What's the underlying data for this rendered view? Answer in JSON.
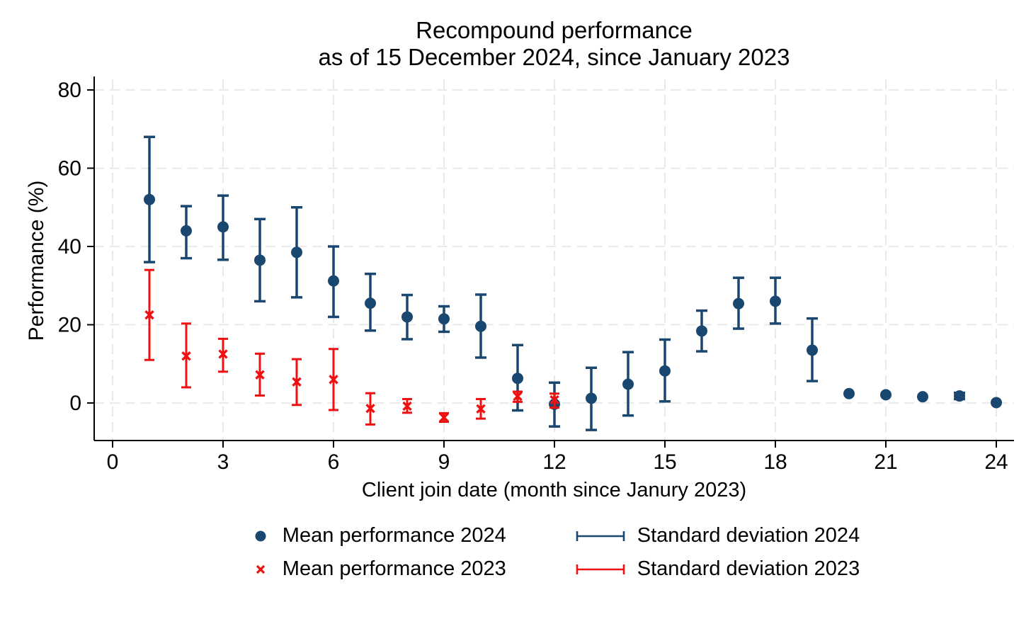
{
  "chart_data": {
    "type": "scatter",
    "title": {
      "line1": "Recompound performance",
      "line2": "as of 15 December 2024, since January 2023"
    },
    "xlabel": "Client join date (month since Janury 2023)",
    "ylabel": "Performance (%)",
    "xlim": [
      0,
      24
    ],
    "x_ticks": [
      0,
      3,
      6,
      9,
      12,
      15,
      18,
      21,
      24
    ],
    "ylim": [
      -9,
      80
    ],
    "y_ticks": [
      0,
      20,
      40,
      60,
      80
    ],
    "grid": "both axes, dashed light gray",
    "legend_position": "bottom",
    "colors": {
      "navy": "#1a476f",
      "red": "#ee1111",
      "grid": "#e3e3e3",
      "axis": "#000000"
    },
    "series": [
      {
        "name": "Mean performance 2024",
        "sd_name": "Standard deviation 2024",
        "color": "#1a476f",
        "marker": "circle",
        "points_format": [
          "month",
          "mean",
          "sd_low",
          "sd_high"
        ],
        "points": [
          [
            1,
            52,
            36,
            68
          ],
          [
            2,
            44,
            37,
            50.3
          ],
          [
            3,
            45,
            36.6,
            53
          ],
          [
            4,
            36.5,
            26,
            47
          ],
          [
            5,
            38.5,
            27,
            50
          ],
          [
            6,
            31.2,
            22,
            40
          ],
          [
            7,
            25.5,
            18.5,
            33
          ],
          [
            8,
            22,
            16.3,
            27.6
          ],
          [
            9,
            21.5,
            18.2,
            24.7
          ],
          [
            10,
            19.6,
            11.6,
            27.7
          ],
          [
            11,
            6.3,
            -1.9,
            14.8
          ],
          [
            12,
            -0.3,
            -6,
            5.2
          ],
          [
            13,
            1.2,
            -6.9,
            9
          ],
          [
            14,
            4.8,
            -3.2,
            13
          ],
          [
            15,
            8.2,
            0.4,
            16.2
          ],
          [
            16,
            18.4,
            13.2,
            23.6
          ],
          [
            17,
            25.4,
            19,
            32
          ],
          [
            18,
            26,
            20.3,
            32
          ],
          [
            19,
            13.5,
            5.6,
            21.6
          ],
          [
            20,
            2.4,
            null,
            null
          ],
          [
            21,
            2.1,
            null,
            null
          ],
          [
            22,
            1.6,
            null,
            null
          ],
          [
            23,
            1.8,
            1.0,
            2.6
          ],
          [
            24,
            0.1,
            null,
            null
          ]
        ]
      },
      {
        "name": "Mean performance 2023",
        "sd_name": "Standard deviation 2023",
        "color": "#ee1111",
        "marker": "x",
        "points_format": [
          "month",
          "mean",
          "sd_low",
          "sd_high"
        ],
        "points": [
          [
            1,
            22.5,
            11,
            34
          ],
          [
            2,
            12,
            4,
            20.3
          ],
          [
            3,
            12.5,
            8,
            16.4
          ],
          [
            4,
            7.2,
            1.9,
            12.6
          ],
          [
            5,
            5.4,
            -0.5,
            11.2
          ],
          [
            6,
            6,
            -1.8,
            13.8
          ],
          [
            7,
            -1.4,
            -5.5,
            2.5
          ],
          [
            8,
            -0.8,
            -2.5,
            1.0
          ],
          [
            9,
            -3.7,
            -4.8,
            -2.6
          ],
          [
            10,
            -1.5,
            -4.0,
            1.0
          ],
          [
            11,
            1.7,
            0.3,
            2.9
          ],
          [
            12,
            0.8,
            -1.2,
            2.4
          ]
        ]
      }
    ],
    "legend": [
      {
        "label": "Mean performance 2024",
        "marker": "circle",
        "color": "#1a476f"
      },
      {
        "label": "Standard deviation 2024",
        "marker": "errorbar",
        "color": "#1a476f"
      },
      {
        "label": "Mean performance 2023",
        "marker": "x",
        "color": "#ee1111"
      },
      {
        "label": "Standard deviation 2023",
        "marker": "errorbar",
        "color": "#ee1111"
      }
    ]
  }
}
